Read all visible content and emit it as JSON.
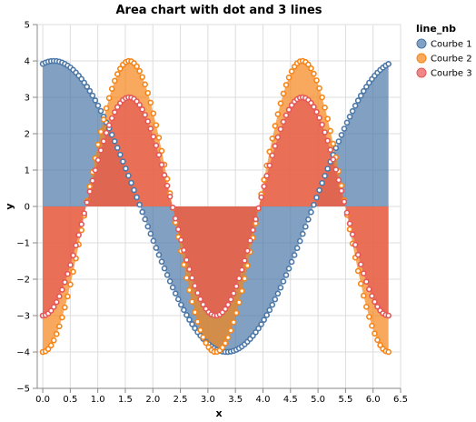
{
  "chart_data": {
    "type": "area",
    "title": "Area chart with dot and 3 lines",
    "xlabel": "x",
    "ylabel": "y",
    "xlim": [
      -0.1,
      6.5
    ],
    "ylim": [
      -5,
      5
    ],
    "x_ticks": [
      "0.0",
      "0.5",
      "1.0",
      "1.5",
      "2.0",
      "2.5",
      "3.0",
      "3.5",
      "4.0",
      "4.5",
      "5.0",
      "5.5",
      "6.0",
      "6.5"
    ],
    "y_ticks": [
      "−5",
      "−4",
      "−3",
      "−2",
      "−1",
      "0",
      "1",
      "2",
      "3",
      "4",
      "5"
    ],
    "grid": true,
    "legend": {
      "title": "line_nb",
      "placement": "right"
    },
    "x_range": [
      0,
      6.28
    ],
    "series": [
      {
        "name": "Courbe 1",
        "color": "#4c78a8",
        "formula": "4·cos(x − 0.2)",
        "y_at_start": 3.92,
        "max": {
          "x": 0.2,
          "y": 4.1
        },
        "min": {
          "x": 3.34,
          "y": -4.1
        }
      },
      {
        "name": "Courbe 2",
        "color": "#f58518",
        "formula": "−4·cos(2x)",
        "y_at_start": -4.0,
        "max": {
          "x": 1.45,
          "y": 4.1
        },
        "min": {
          "x": 3.1,
          "y": -4.1
        }
      },
      {
        "name": "Courbe 3",
        "color": "#e45756",
        "formula": "−3·cos(2x)",
        "y_at_start": -3.0,
        "max": {
          "x": 1.5,
          "y": 3.15
        },
        "min": {
          "x": 3.0,
          "y": -3.15
        }
      }
    ]
  }
}
